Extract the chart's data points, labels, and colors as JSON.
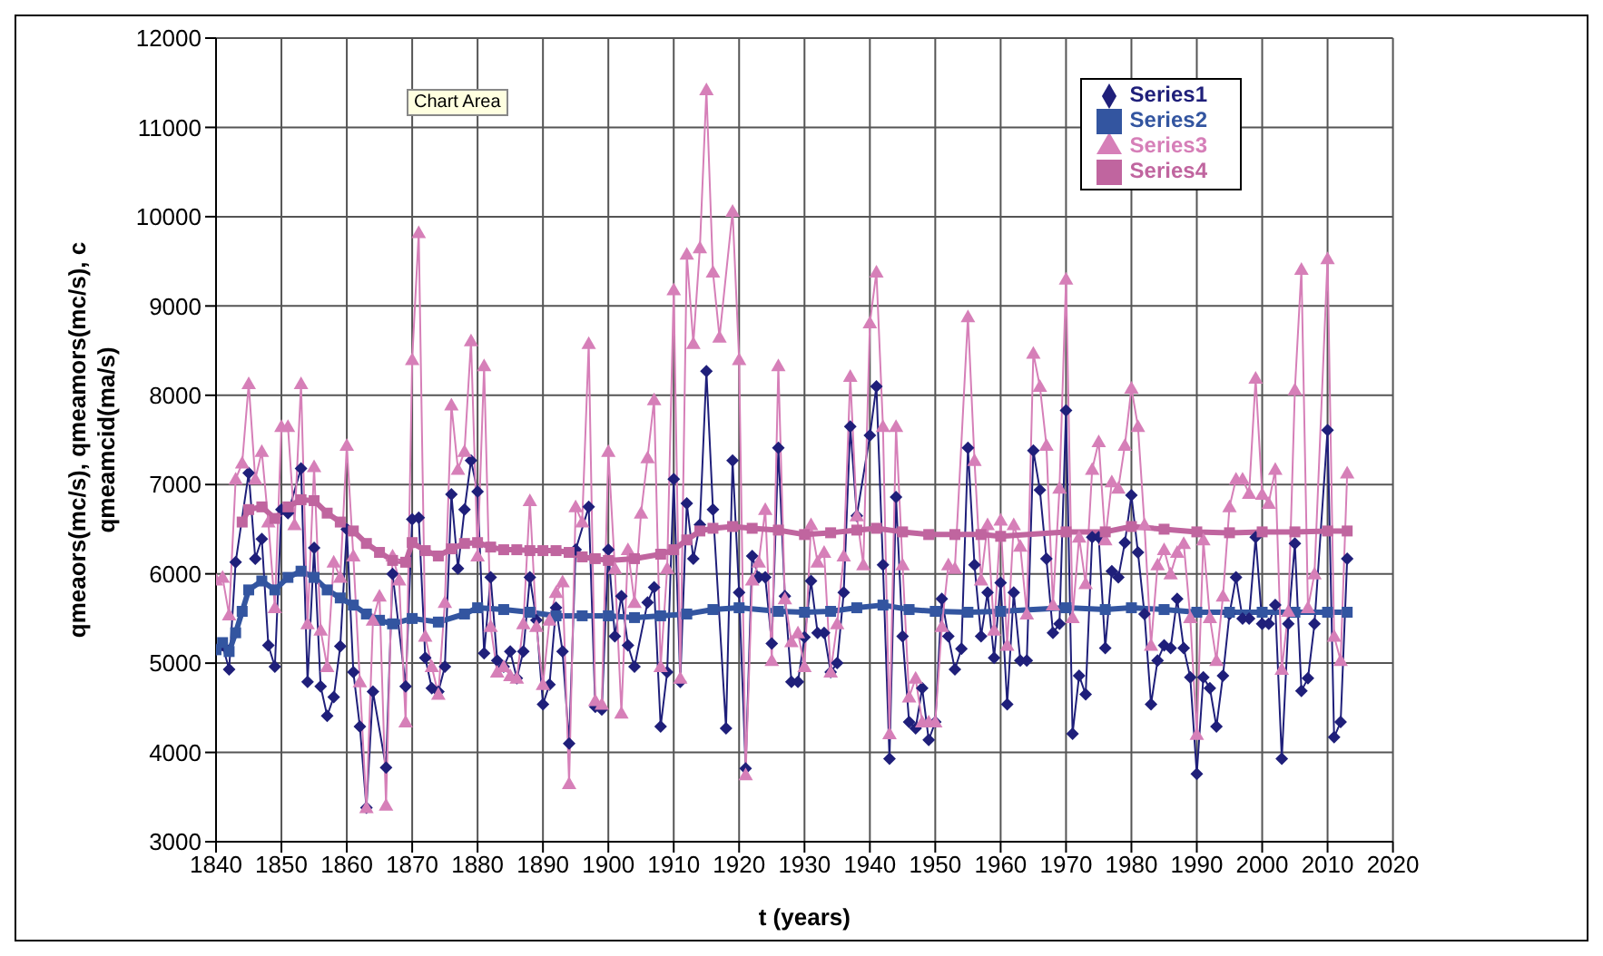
{
  "chart_data": {
    "type": "line",
    "xlabel": "t (years)",
    "ylabel": "qmeaors(mc/s), qmeamors(mc/s), c\nqmeamcid(ma/s)",
    "annotations": [
      "Chart Area"
    ],
    "xlim": [
      1840,
      2020
    ],
    "xticks": [
      1840,
      1850,
      1860,
      1870,
      1880,
      1890,
      1900,
      1910,
      1920,
      1930,
      1940,
      1950,
      1960,
      1970,
      1980,
      1990,
      2000,
      2010,
      2020
    ],
    "ylim": [
      3000,
      12000
    ],
    "yticks": [
      3000,
      4000,
      5000,
      6000,
      7000,
      8000,
      9000,
      10000,
      11000,
      12000
    ],
    "grid": true,
    "legend": "top right",
    "line_style": "solid",
    "series": [
      {
        "name": "Series1",
        "color": "#1f1f7a",
        "marker": "diamond",
        "x": [
          1840,
          1841,
          1842,
          1843,
          1845,
          1846,
          1847,
          1848,
          1849,
          1850,
          1851,
          1853,
          1854,
          1855,
          1856,
          1857,
          1858,
          1859,
          1860,
          1861,
          1862,
          1863,
          1864,
          1866,
          1867,
          1869,
          1870,
          1871,
          1872,
          1873,
          1874,
          1875,
          1876,
          1877,
          1878,
          1879,
          1880,
          1881,
          1882,
          1883,
          1884,
          1885,
          1886,
          1887,
          1888,
          1889,
          1890,
          1891,
          1892,
          1893,
          1894,
          1895,
          1897,
          1898,
          1899,
          1900,
          1901,
          1902,
          1903,
          1904,
          1906,
          1907,
          1908,
          1909,
          1910,
          1911,
          1912,
          1913,
          1914,
          1915,
          1916,
          1918,
          1919,
          1920,
          1921,
          1922,
          1923,
          1924,
          1925,
          1926,
          1927,
          1928,
          1929,
          1930,
          1931,
          1932,
          1933,
          1934,
          1935,
          1936,
          1937,
          1938,
          1940,
          1941,
          1942,
          1943,
          1944,
          1945,
          1946,
          1947,
          1948,
          1949,
          1950,
          1951,
          1952,
          1953,
          1954,
          1955,
          1956,
          1957,
          1958,
          1959,
          1960,
          1961,
          1962,
          1963,
          1964,
          1965,
          1966,
          1967,
          1968,
          1969,
          1970,
          1971,
          1972,
          1973,
          1974,
          1975,
          1976,
          1977,
          1978,
          1979,
          1980,
          1981,
          1982,
          1983,
          1984,
          1985,
          1986,
          1987,
          1988,
          1989,
          1990,
          1991,
          1992,
          1993,
          1994,
          1995,
          1996,
          1997,
          1998,
          1999,
          2000,
          2001,
          2002,
          2003,
          2004,
          2005,
          2006,
          2007,
          2008,
          2010,
          2011,
          2012,
          2013
        ],
        "values": [
          5150,
          5200,
          4930,
          6130,
          7130,
          6170,
          6390,
          5200,
          4960,
          6720,
          6680,
          7180,
          4790,
          6290,
          4740,
          4410,
          4620,
          5190,
          6500,
          4900,
          4290,
          3380,
          4680,
          3830,
          6000,
          4740,
          6610,
          6630,
          5060,
          4720,
          4680,
          4960,
          6890,
          6060,
          6720,
          7270,
          6920,
          5110,
          5960,
          5030,
          4960,
          5130,
          4830,
          5130,
          5960,
          5480,
          4540,
          4760,
          5620,
          5130,
          4100,
          6270,
          6750,
          4510,
          4480,
          6270,
          5300,
          5750,
          5200,
          4960,
          5680,
          5850,
          4290,
          4900,
          7060,
          4790,
          6790,
          6170,
          6550,
          8270,
          6720,
          4270,
          7270,
          5790,
          3820,
          6200,
          5960,
          5960,
          5220,
          7410,
          5750,
          4790,
          4790,
          5290,
          5920,
          5340,
          5340,
          4900,
          5000,
          5790,
          7650,
          6650,
          7550,
          8100,
          6100,
          3930,
          6860,
          5300,
          4340,
          4270,
          4720,
          4140,
          4340,
          5720,
          5300,
          4930,
          5160,
          7410,
          6100,
          5300,
          5790,
          5060,
          5900,
          4540,
          5790,
          5030,
          5030,
          7380,
          6940,
          6170,
          5340,
          5440,
          7830,
          4210,
          4860,
          4650,
          6410,
          6410,
          5170,
          6030,
          5960,
          6350,
          6880,
          6240,
          5550,
          4540,
          5030,
          5200,
          5170,
          5720,
          5170,
          4840,
          3760,
          4840,
          4720,
          4290,
          4860,
          5550,
          5960,
          5500,
          5500,
          6410,
          5440,
          5440,
          5650,
          3930,
          5440,
          6340,
          4690,
          4830,
          5440,
          7610,
          4170,
          4340,
          6170
        ]
      },
      {
        "name": "Series2",
        "color": "#3355a0",
        "marker": "square",
        "x": [
          1840,
          1841,
          1842,
          1843,
          1844,
          1845,
          1847,
          1849,
          1851,
          1853,
          1855,
          1857,
          1859,
          1861,
          1863,
          1865,
          1867,
          1870,
          1874,
          1878,
          1880,
          1884,
          1888,
          1892,
          1896,
          1900,
          1904,
          1908,
          1912,
          1916,
          1920,
          1926,
          1930,
          1934,
          1938,
          1942,
          1946,
          1950,
          1955,
          1960,
          1970,
          1976,
          1980,
          1985,
          1990,
          1995,
          2000,
          2005,
          2010,
          2013
        ],
        "values": [
          5150,
          5230,
          5130,
          5340,
          5580,
          5820,
          5920,
          5820,
          5960,
          6030,
          5960,
          5820,
          5730,
          5650,
          5550,
          5480,
          5440,
          5500,
          5460,
          5550,
          5620,
          5600,
          5570,
          5530,
          5530,
          5530,
          5510,
          5530,
          5550,
          5600,
          5620,
          5580,
          5570,
          5580,
          5620,
          5650,
          5600,
          5580,
          5570,
          5580,
          5620,
          5600,
          5620,
          5600,
          5570,
          5570,
          5570,
          5570,
          5570,
          5570
        ]
      },
      {
        "name": "Series3",
        "color": "#d67fb8",
        "marker": "triangle",
        "x": [
          1840,
          1841,
          1842,
          1843,
          1844,
          1845,
          1846,
          1847,
          1848,
          1849,
          1850,
          1851,
          1852,
          1853,
          1854,
          1855,
          1856,
          1857,
          1858,
          1859,
          1860,
          1861,
          1862,
          1863,
          1864,
          1865,
          1866,
          1867,
          1868,
          1869,
          1870,
          1871,
          1872,
          1873,
          1874,
          1875,
          1876,
          1877,
          1878,
          1879,
          1880,
          1881,
          1882,
          1883,
          1884,
          1885,
          1886,
          1887,
          1888,
          1889,
          1890,
          1891,
          1892,
          1893,
          1894,
          1895,
          1896,
          1897,
          1898,
          1899,
          1900,
          1901,
          1902,
          1903,
          1904,
          1905,
          1906,
          1907,
          1908,
          1909,
          1910,
          1911,
          1912,
          1913,
          1914,
          1915,
          1916,
          1917,
          1919,
          1920,
          1921,
          1922,
          1923,
          1924,
          1925,
          1926,
          1927,
          1928,
          1929,
          1930,
          1931,
          1932,
          1933,
          1934,
          1935,
          1936,
          1937,
          1938,
          1939,
          1940,
          1941,
          1942,
          1943,
          1944,
          1945,
          1946,
          1947,
          1948,
          1949,
          1950,
          1951,
          1952,
          1953,
          1955,
          1956,
          1957,
          1958,
          1959,
          1960,
          1961,
          1962,
          1963,
          1964,
          1965,
          1966,
          1967,
          1968,
          1969,
          1970,
          1971,
          1972,
          1973,
          1974,
          1975,
          1976,
          1977,
          1978,
          1979,
          1980,
          1981,
          1982,
          1983,
          1984,
          1985,
          1986,
          1987,
          1988,
          1989,
          1990,
          1991,
          1992,
          1993,
          1994,
          1995,
          1996,
          1997,
          1998,
          1999,
          2000,
          2001,
          2002,
          2003,
          2004,
          2005,
          2006,
          2007,
          2008,
          2010,
          2011,
          2012,
          2013
        ],
        "values": [
          5930,
          5960,
          5540,
          7060,
          7240,
          8130,
          7060,
          7370,
          6580,
          5620,
          7650,
          7650,
          6550,
          8130,
          5440,
          7200,
          5370,
          4960,
          6130,
          5960,
          7440,
          6200,
          4790,
          3380,
          5480,
          5750,
          3410,
          6200,
          5930,
          4340,
          8400,
          9820,
          5300,
          4960,
          4650,
          5680,
          7890,
          7170,
          7370,
          8610,
          6200,
          8330,
          5410,
          4900,
          4960,
          4860,
          4830,
          5440,
          6820,
          5410,
          4760,
          5480,
          5790,
          5910,
          3650,
          6750,
          6580,
          8580,
          4580,
          4540,
          7370,
          6060,
          4440,
          6270,
          5680,
          6680,
          7300,
          7950,
          4960,
          6060,
          9180,
          4830,
          9580,
          8580,
          9650,
          11420,
          9380,
          8650,
          10060,
          8400,
          3750,
          5930,
          6130,
          6720,
          5030,
          8330,
          5720,
          5240,
          5340,
          4960,
          6550,
          6130,
          6240,
          4900,
          5440,
          6200,
          8210,
          6650,
          6100,
          8810,
          9380,
          7650,
          4210,
          7650,
          6100,
          4620,
          4830,
          4340,
          4340,
          4340,
          5410,
          6100,
          6060,
          8880,
          7270,
          5930,
          6550,
          5370,
          6600,
          5200,
          6550,
          6310,
          5550,
          8470,
          8100,
          7440,
          5650,
          6960,
          9300,
          5510,
          6410,
          5890,
          7170,
          7480,
          6380,
          7030,
          6960,
          7440,
          8080,
          7650,
          6550,
          5200,
          6100,
          6270,
          6000,
          6240,
          6340,
          5510,
          4200,
          6380,
          5510,
          5030,
          5750,
          6750,
          7060,
          7060,
          6900,
          8190,
          6890,
          6790,
          7170,
          4930,
          5580,
          8060,
          9410,
          5620,
          6000,
          9530,
          5300,
          5030,
          7130
        ]
      },
      {
        "name": "Series4",
        "color": "#c0659f",
        "marker": "square",
        "x": [
          1844,
          1845,
          1847,
          1849,
          1851,
          1853,
          1855,
          1857,
          1859,
          1861,
          1863,
          1865,
          1867,
          1869,
          1870,
          1872,
          1874,
          1876,
          1878,
          1880,
          1882,
          1884,
          1886,
          1888,
          1890,
          1892,
          1894,
          1896,
          1898,
          1900,
          1904,
          1908,
          1910,
          1912,
          1914,
          1916,
          1919,
          1922,
          1926,
          1930,
          1934,
          1938,
          1941,
          1945,
          1949,
          1953,
          1957,
          1960,
          1970,
          1976,
          1980,
          1985,
          1990,
          1995,
          2000,
          2005,
          2010,
          2013
        ],
        "values": [
          6580,
          6720,
          6750,
          6620,
          6750,
          6830,
          6820,
          6680,
          6580,
          6480,
          6340,
          6240,
          6150,
          6130,
          6350,
          6260,
          6200,
          6280,
          6340,
          6350,
          6300,
          6270,
          6270,
          6260,
          6260,
          6260,
          6240,
          6190,
          6170,
          6150,
          6170,
          6220,
          6270,
          6380,
          6480,
          6510,
          6530,
          6510,
          6490,
          6440,
          6460,
          6490,
          6510,
          6470,
          6440,
          6440,
          6440,
          6420,
          6470,
          6470,
          6530,
          6500,
          6470,
          6460,
          6470,
          6470,
          6480,
          6480
        ]
      }
    ]
  }
}
